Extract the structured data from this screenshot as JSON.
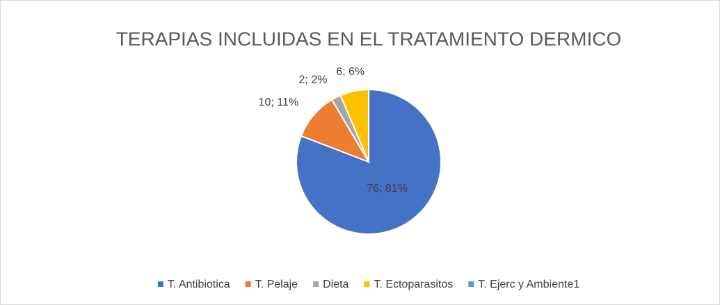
{
  "chart_data": {
    "type": "pie",
    "title": "TERAPIAS INCLUIDAS EN EL TRATAMIENTO DERMICO",
    "categories": [
      "T. Antibiotica",
      "T. Pelaje",
      "Dieta",
      "T. Ectoparasitos",
      "T. Ejerc y Ambiente1"
    ],
    "values": [
      76,
      10,
      2,
      6,
      0
    ],
    "value_labels": [
      "76; 81%",
      "10; 11%",
      "2; 2%",
      "6; 6%",
      null
    ],
    "colors": [
      "#4472c4",
      "#ed7d31",
      "#a5a5a5",
      "#ffc000",
      "#5b9bd5"
    ],
    "legend": "bottom"
  }
}
